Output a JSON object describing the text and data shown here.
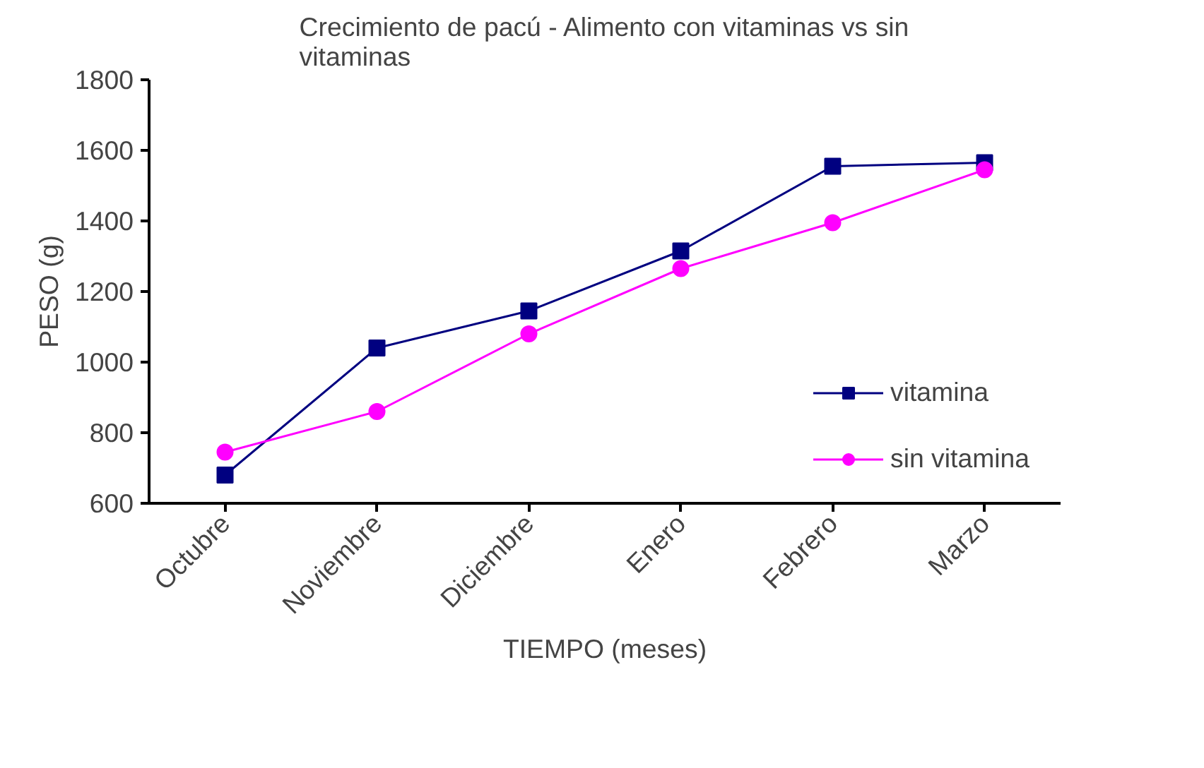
{
  "chart_data": {
    "type": "line",
    "title": "Crecimiento de pacú - Alimento con vitaminas vs sin vitaminas",
    "xlabel": "TIEMPO (meses)",
    "ylabel": "PESO (g)",
    "categories": [
      "Octubre",
      "Noviembre",
      "Diciembre",
      "Enero",
      "Febrero",
      "Marzo"
    ],
    "series": [
      {
        "name": "vitamina",
        "color": "#000080",
        "marker": "square",
        "values": [
          680,
          1040,
          1145,
          1315,
          1555,
          1565
        ]
      },
      {
        "name": "sin vitamina",
        "color": "#ff00ff",
        "marker": "circle",
        "values": [
          745,
          860,
          1080,
          1265,
          1395,
          1545
        ]
      }
    ],
    "ylim": [
      600,
      1800
    ],
    "yticks": [
      600,
      800,
      1000,
      1200,
      1400,
      1600,
      1800
    ],
    "grid": false,
    "legend": "right",
    "line_style": "solid"
  }
}
